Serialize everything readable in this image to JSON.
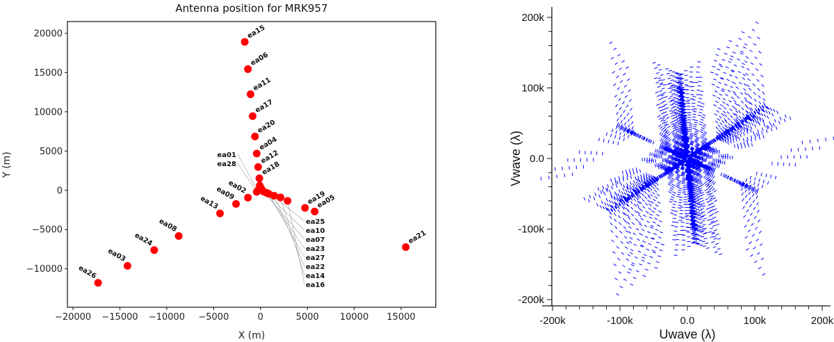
{
  "chart_data": [
    {
      "type": "scatter",
      "title": "Antenna position for MRK957",
      "xlabel": "X (m)",
      "ylabel": "Y (m)",
      "xlim": [
        -20600,
        18700
      ],
      "ylim": [
        -14900,
        21500
      ],
      "xticks": [
        -20000,
        -15000,
        -10000,
        -5000,
        0,
        5000,
        10000,
        15000
      ],
      "yticks": [
        -10000,
        -5000,
        0,
        5000,
        10000,
        15000,
        20000
      ],
      "marker_color": "#ff0000",
      "points": [
        {
          "name": "ea15",
          "x": -1680,
          "y": 18910
        },
        {
          "name": "ea06",
          "x": -1340,
          "y": 15440
        },
        {
          "name": "ea11",
          "x": -1060,
          "y": 12240
        },
        {
          "name": "ea17",
          "x": -840,
          "y": 9440
        },
        {
          "name": "ea20",
          "x": -590,
          "y": 6850
        },
        {
          "name": "ea04",
          "x": -400,
          "y": 4680
        },
        {
          "name": "ea12",
          "x": -250,
          "y": 2970
        },
        {
          "name": "ea18",
          "x": -120,
          "y": 1530
        },
        {
          "name": "ea25",
          "x": -80,
          "y": 600
        },
        {
          "name": "ea10",
          "x": 100,
          "y": 200
        },
        {
          "name": "ea01",
          "x": -300,
          "y": -60
        },
        {
          "name": "ea28",
          "x": -400,
          "y": -200
        },
        {
          "name": "ea07",
          "x": 310,
          "y": -150
        },
        {
          "name": "ea23",
          "x": 600,
          "y": -300
        },
        {
          "name": "ea27",
          "x": 870,
          "y": -440
        },
        {
          "name": "ea22",
          "x": 1460,
          "y": -680
        },
        {
          "name": "ea14",
          "x": 2140,
          "y": -910
        },
        {
          "name": "ea16",
          "x": 2890,
          "y": -1350
        },
        {
          "name": "ea19",
          "x": 4750,
          "y": -2240
        },
        {
          "name": "ea05",
          "x": 5780,
          "y": -2700
        },
        {
          "name": "ea21",
          "x": 15500,
          "y": -7240
        },
        {
          "name": "ea02",
          "x": -1340,
          "y": -940
        },
        {
          "name": "ea09",
          "x": -2610,
          "y": -1740
        },
        {
          "name": "ea13",
          "x": -4320,
          "y": -2940
        },
        {
          "name": "ea08",
          "x": -8730,
          "y": -5820
        },
        {
          "name": "ea24",
          "x": -11340,
          "y": -7620
        },
        {
          "name": "ea03",
          "x": -14190,
          "y": -9620
        },
        {
          "name": "ea26",
          "x": -17330,
          "y": -11790
        }
      ]
    },
    {
      "type": "scatter",
      "title": "",
      "xlabel": "Uwave (λ)",
      "ylabel": "Vwave (λ)",
      "xlim": [
        -200000,
        230000
      ],
      "ylim": [
        -210000,
        215000
      ],
      "xticks": [
        -200000,
        -100000,
        0,
        100000,
        200000
      ],
      "xtick_labels": [
        "-200k",
        "-100k",
        "0.0",
        "100k",
        "200k"
      ],
      "yticks": [
        200000,
        100000,
        0,
        -100000,
        -200000
      ],
      "ytick_labels": [
        "200k",
        "100k",
        "0.0",
        "-100k",
        "-200k"
      ],
      "minor_tick_step": 20000,
      "marker_color": "#0000ff",
      "grid": false,
      "points_source": "baselines of antenna positions (uv coverage)"
    }
  ]
}
